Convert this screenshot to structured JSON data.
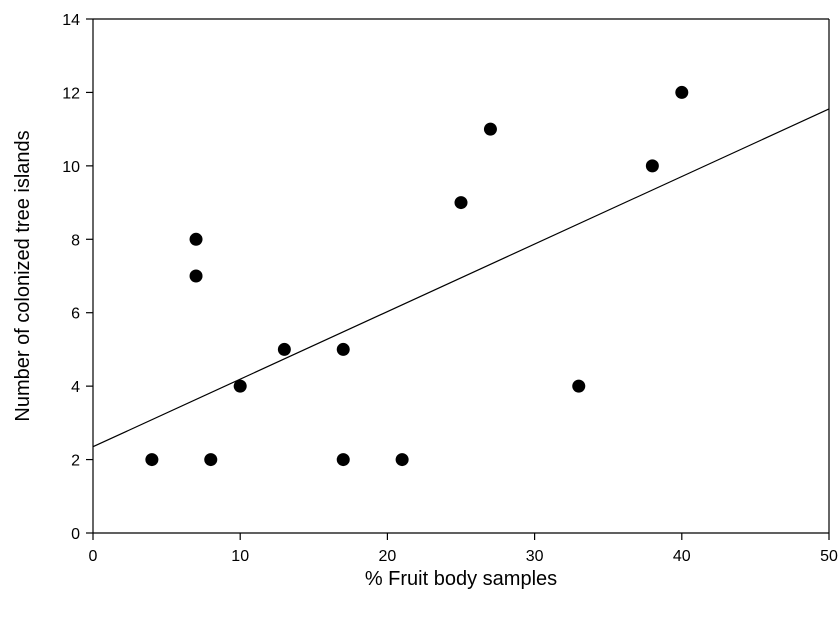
{
  "chart_data": {
    "type": "scatter",
    "title": "",
    "xlabel": "% Fruit body samples",
    "ylabel": "Number of colonized tree islands",
    "xlim": [
      0,
      50
    ],
    "ylim": [
      0,
      14
    ],
    "xticks": [
      0,
      10,
      20,
      30,
      40,
      50
    ],
    "yticks": [
      0,
      2,
      4,
      6,
      8,
      10,
      12,
      14
    ],
    "grid": false,
    "legend": "none",
    "points": [
      {
        "x": 4,
        "y": 2
      },
      {
        "x": 7,
        "y": 8
      },
      {
        "x": 7,
        "y": 7
      },
      {
        "x": 8,
        "y": 2
      },
      {
        "x": 10,
        "y": 4
      },
      {
        "x": 13,
        "y": 5
      },
      {
        "x": 17,
        "y": 5
      },
      {
        "x": 17,
        "y": 2
      },
      {
        "x": 21,
        "y": 2
      },
      {
        "x": 25,
        "y": 9
      },
      {
        "x": 27,
        "y": 11
      },
      {
        "x": 33,
        "y": 4
      },
      {
        "x": 38,
        "y": 10
      },
      {
        "x": 40,
        "y": 12
      }
    ],
    "trendline": {
      "x": [
        0,
        50
      ],
      "y": [
        2.35,
        11.55
      ]
    },
    "colors": {
      "marker": "#000000",
      "line": "#000000",
      "axis": "#000000"
    }
  }
}
